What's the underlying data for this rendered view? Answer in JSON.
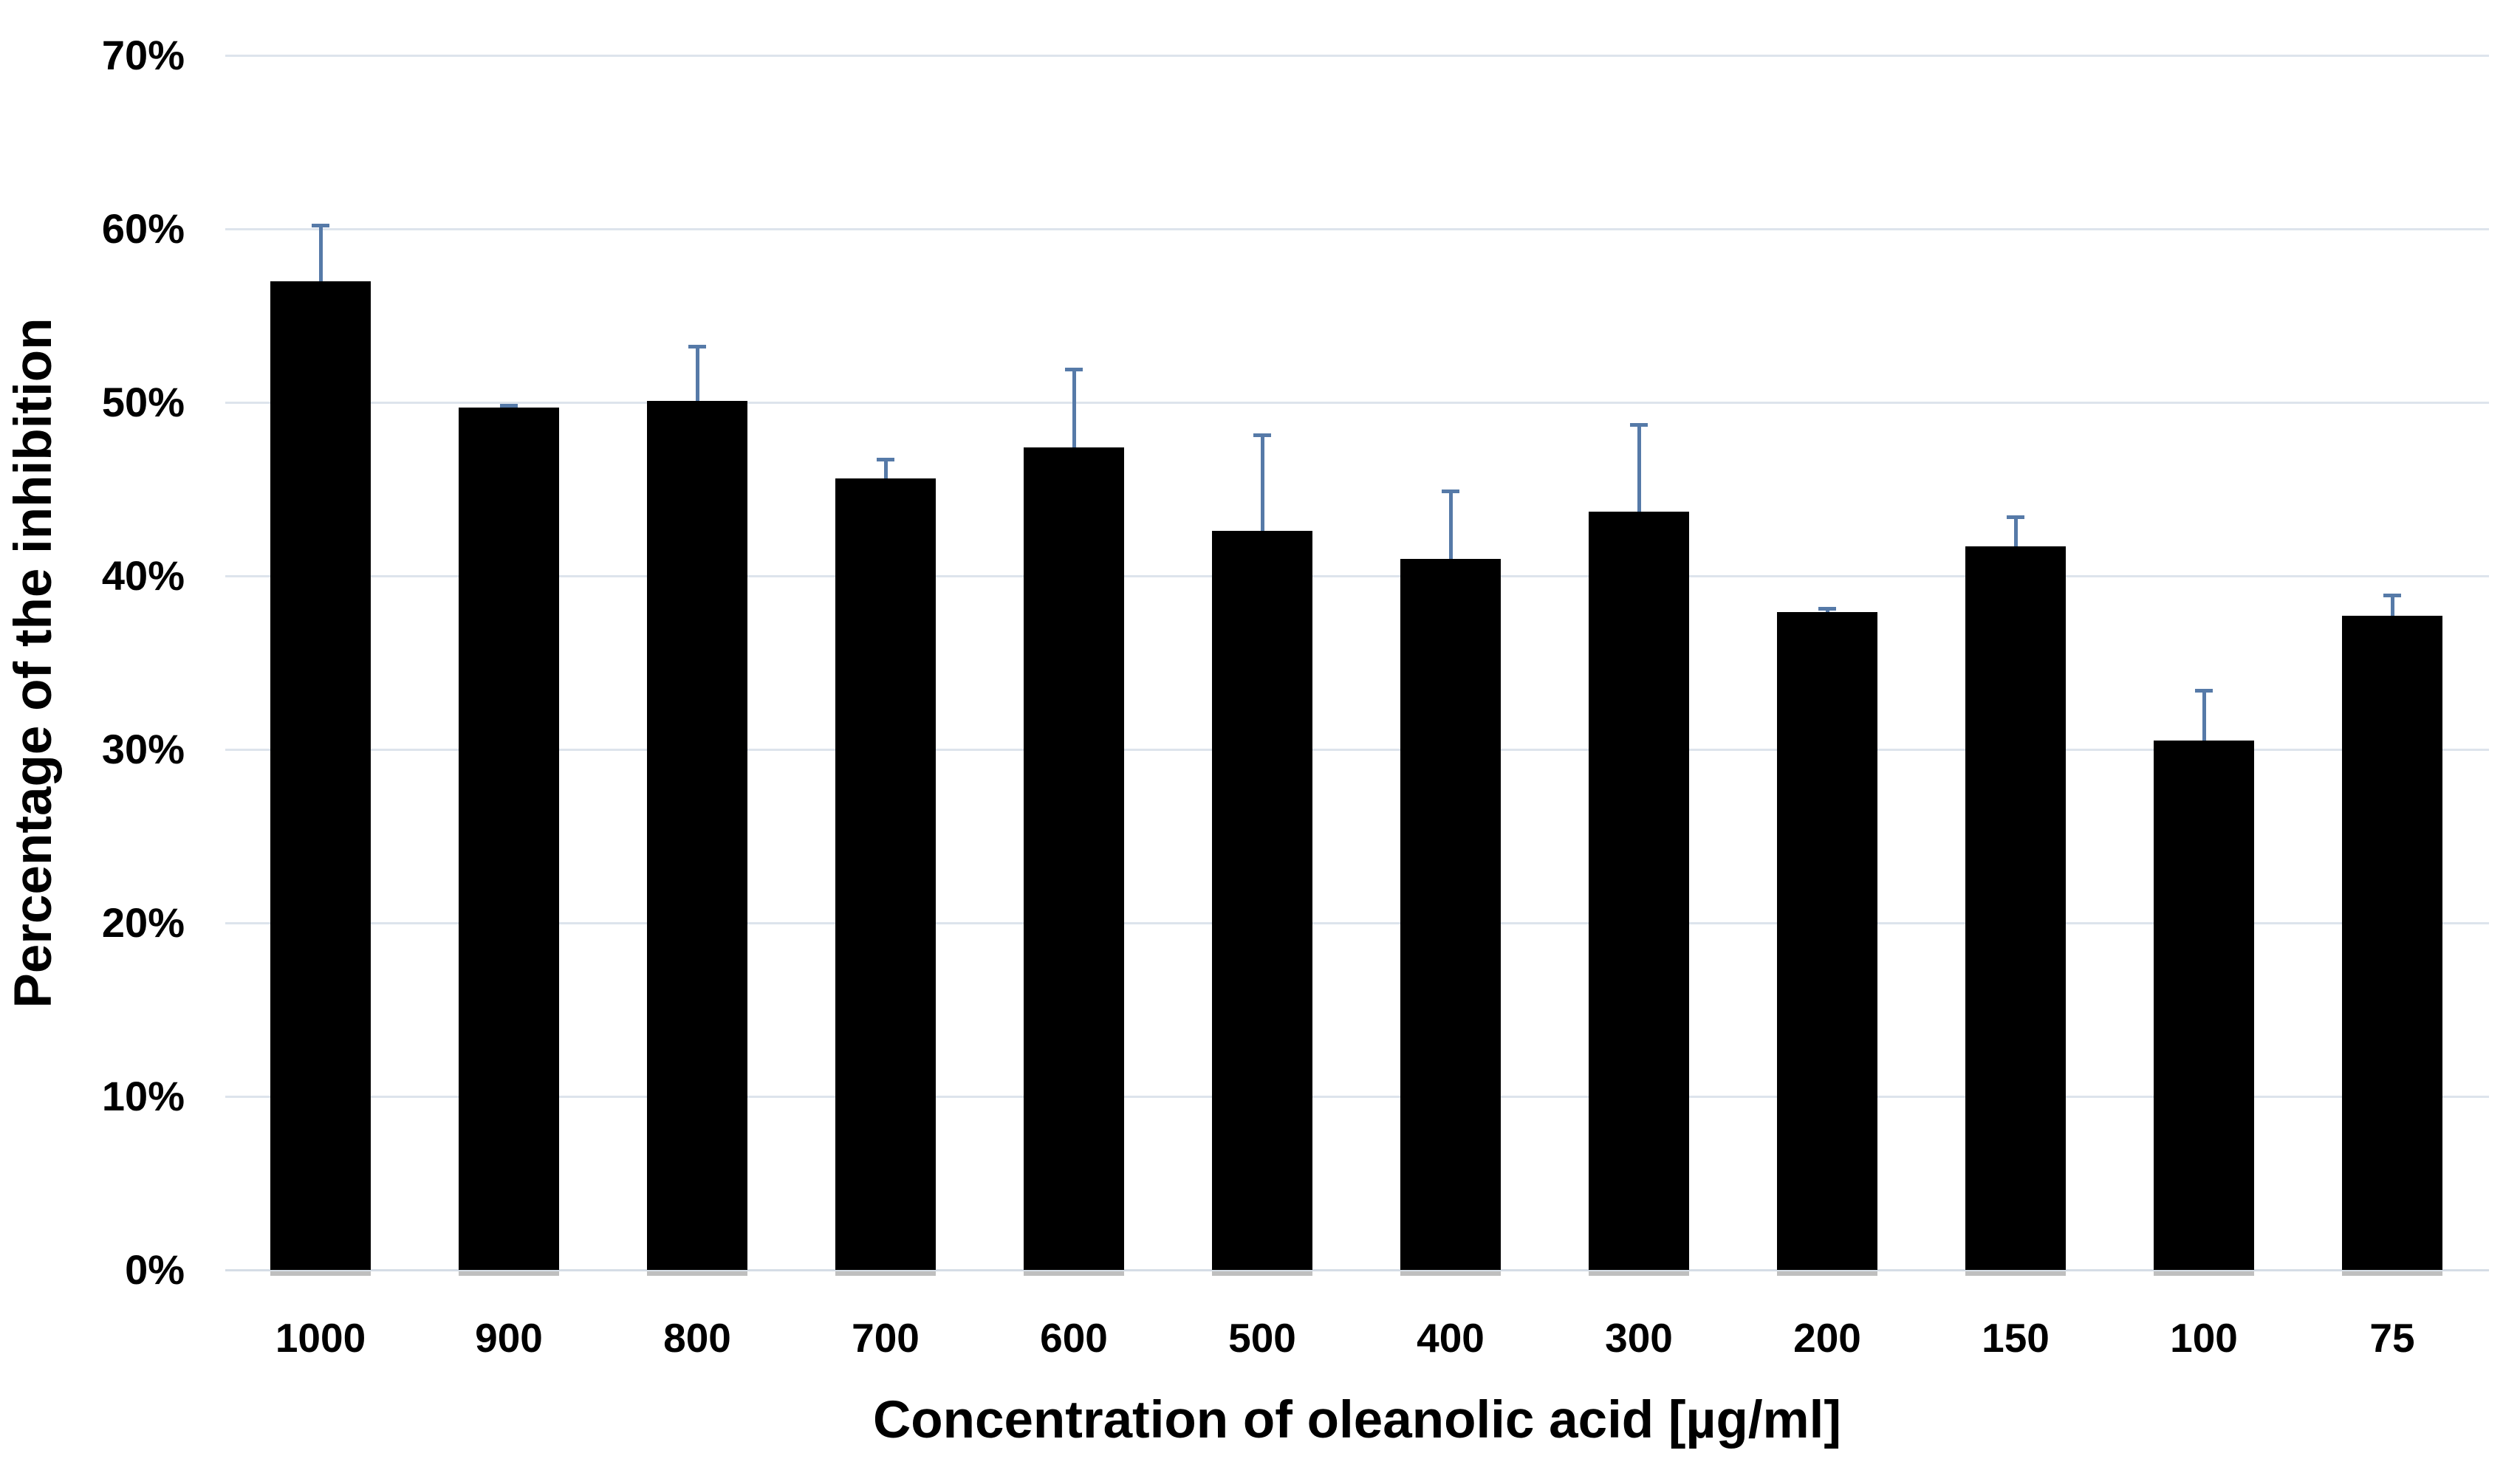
{
  "chart_data": {
    "type": "bar",
    "title": "",
    "xlabel": "Concentration of oleanolic acid [µg/ml]",
    "ylabel": "Percentage of the inhibition",
    "categories": [
      "1000",
      "900",
      "800",
      "700",
      "600",
      "500",
      "400",
      "300",
      "200",
      "150",
      "100",
      "75"
    ],
    "values": [
      57.0,
      49.7,
      50.1,
      45.6,
      47.4,
      42.6,
      41.0,
      43.7,
      37.9,
      41.7,
      30.5,
      37.7
    ],
    "error_bars_plus": [
      3.3,
      0.2,
      3.2,
      1.2,
      4.6,
      5.6,
      4.0,
      5.1,
      0.3,
      1.8,
      3.0,
      1.3
    ],
    "y_ticks": [
      "0%",
      "10%",
      "20%",
      "30%",
      "40%",
      "50%",
      "60%",
      "70%"
    ],
    "y_tick_values": [
      0,
      10,
      20,
      30,
      40,
      50,
      60,
      70
    ],
    "ylim": [
      0,
      70
    ],
    "grid": "horizontal-only",
    "legend": "none",
    "bar_color": "#000000",
    "bar_shadow_color": "#a9a9a9",
    "error_bar_color": "#567aa8",
    "gridline_color": "#dde4ec",
    "axis_line_color": "#d5dde6",
    "text_color": "#000000",
    "background": "#ffffff"
  }
}
